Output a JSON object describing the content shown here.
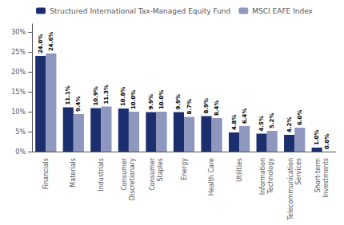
{
  "chart_data": {
    "type": "bar",
    "categories": [
      "Financials",
      "Materials",
      "Industrials",
      "Consumer\nDiscretionary",
      "Consumer\nStaples",
      "Energy",
      "Health Care",
      "Utilities",
      "Information\nTechnology",
      "Telecommunication\nServices",
      "Short-term\nInvestments"
    ],
    "series": [
      {
        "name": "Structured International Tax-Managed Equity Fund",
        "color": "#1b2f6e",
        "values": [
          24.0,
          11.1,
          10.9,
          10.8,
          9.9,
          9.9,
          8.9,
          4.8,
          4.5,
          4.2,
          1.0
        ],
        "value_labels": [
          "24.0%",
          "11.1%",
          "10.9%",
          "10.8%",
          "9.9%",
          "9.9%",
          "8.9%",
          "4.8%",
          "4.5%",
          "4.2%",
          "1.0%"
        ]
      },
      {
        "name": "MSCI EAFE Index",
        "color": "#8e97be",
        "values": [
          24.6,
          9.4,
          11.3,
          10.0,
          10.0,
          8.7,
          8.4,
          6.4,
          5.2,
          6.0,
          0.0
        ],
        "value_labels": [
          "24.6%",
          "9.4%",
          "11.3%",
          "10.0%",
          "10.0%",
          "8.7%",
          "8.4%",
          "6.4%",
          "5.2%",
          "6.0%",
          "0.0%"
        ]
      }
    ],
    "ylim": [
      0,
      32
    ],
    "yticks": [
      {
        "value": 0,
        "label": "0%"
      },
      {
        "value": 5,
        "label": "5%"
      },
      {
        "value": 10,
        "label": "10%"
      },
      {
        "value": 15,
        "label": "15%"
      },
      {
        "value": 20,
        "label": "20%"
      },
      {
        "value": 25,
        "label": "25%"
      },
      {
        "value": 30,
        "label": "30%"
      }
    ],
    "data_labels": true,
    "legend": "upper left",
    "grid": false
  }
}
